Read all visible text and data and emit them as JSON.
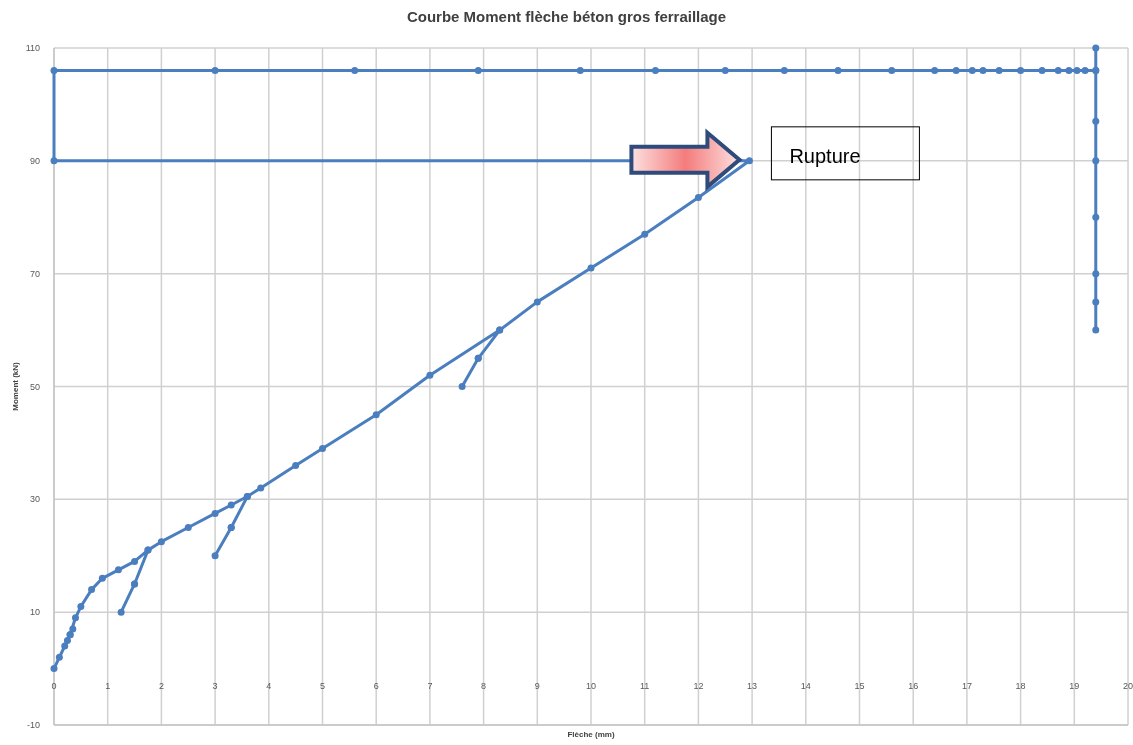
{
  "chart_data": {
    "type": "line",
    "title": "Courbe Moment flèche béton gros ferraillage",
    "xlabel": "Flèche (mm)",
    "ylabel": "Moment (kN)",
    "xlim": [
      0,
      20
    ],
    "xticks": [
      0,
      1,
      2,
      3,
      4,
      5,
      6,
      7,
      8,
      9,
      10,
      11,
      12,
      13,
      14,
      15,
      16,
      17,
      18,
      19,
      20
    ],
    "ylim": [
      -10,
      110
    ],
    "yticks": [
      -10,
      10,
      30,
      50,
      70,
      90,
      110
    ],
    "grid": true,
    "marker": "circle",
    "line_style": "solid",
    "series": [
      {
        "color": "#4a7ebf",
        "x": [
          0,
          0.1,
          0.2,
          0.3,
          0.35,
          0.25,
          0.3,
          0.4,
          0.5,
          0.7,
          0.9,
          1.2,
          1.5,
          1.75,
          1.5,
          1.25,
          1.5,
          1.75,
          2,
          2.5,
          3,
          3.3,
          3.6,
          3.3,
          3,
          3.3,
          3.6,
          3.85,
          4.5,
          5,
          6,
          7,
          8.3,
          7.9,
          7.6,
          7.9,
          8.3,
          9,
          10,
          11,
          12,
          12.95,
          0,
          0,
          3,
          5.6,
          7.9,
          9.8,
          11.2,
          12.5,
          13.6,
          14.6,
          15.6,
          16.4,
          16.8,
          17.1,
          17.3,
          17.6,
          18,
          18.4,
          18.7,
          18.9,
          19.05,
          19.2,
          19.4,
          19.4,
          19.4,
          19.4,
          19.4,
          19.4,
          19.4,
          19.4,
          19.4
        ],
        "values": [
          0,
          2,
          4,
          6,
          7,
          5,
          6,
          9,
          11,
          14,
          16,
          17.5,
          19,
          21,
          15,
          10,
          15,
          21,
          22.5,
          25,
          27.5,
          29,
          30.5,
          25,
          20,
          25,
          30.5,
          32,
          36,
          39,
          45,
          52,
          60,
          55,
          50,
          55,
          60,
          65,
          71,
          77,
          83.5,
          90,
          90,
          106,
          106,
          106,
          106,
          106,
          106,
          106,
          106,
          106,
          106,
          106,
          106,
          106,
          106,
          106,
          106,
          106,
          106,
          106,
          106,
          106,
          106,
          110,
          106,
          97,
          90,
          80,
          70,
          65,
          60
        ]
      }
    ],
    "annotations": [
      {
        "text": "Rupture",
        "x": 12.95,
        "y": 90
      }
    ]
  }
}
